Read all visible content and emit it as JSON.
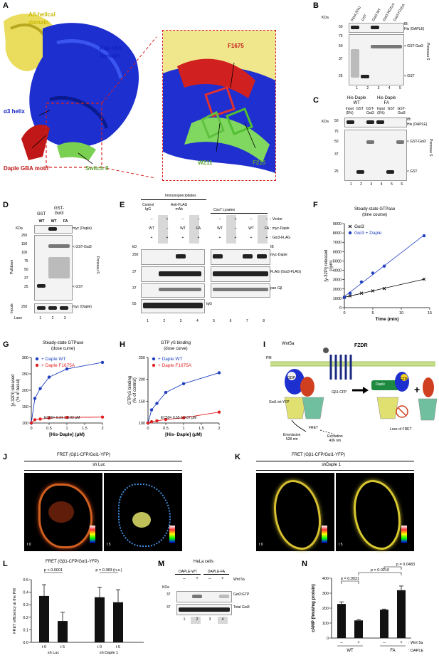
{
  "panels": {
    "A": {
      "letter": "A",
      "labels": {
        "all_helical": "All-helical\ndomain",
        "ras_like": "Ras-like\ndomain",
        "a3_helix": "α3 helix",
        "gba": "Daple GBA motif",
        "switch2": "Switch II",
        "f1675": "F1675",
        "w211": "W211",
        "f215": "F215"
      }
    },
    "B": {
      "letter": "B",
      "kda": "KDa",
      "lanes_top": [
        "Input (5%)",
        "GST",
        "Gαi3 WT",
        "Gαi3 W211A",
        "Gαi3 F215A"
      ],
      "ib": "IB:\nHis (DAPLE)",
      "ponceau": "Ponceau S",
      "gst_gai3": "< GST-Gαi3",
      "gst": "< GST",
      "lane_nums": [
        "1",
        "2",
        "3",
        "4",
        "5"
      ],
      "mw": [
        "50",
        "75",
        "50",
        "37",
        "25"
      ]
    },
    "C": {
      "letter": "C",
      "kda": "KDa",
      "group1": "His-Daple\nWT",
      "group2": "His-Daple\nFA",
      "lanes": [
        "Input\n(5%)",
        "GST",
        "GST-\nGαi3",
        "Input\n(5%)",
        "GST",
        "GST-\nGαi3"
      ],
      "ib": "IB:\nHis (DAPLE)",
      "ponceau": "Ponceau S",
      "gst_gai3": "< GST-Gαi3",
      "gst": "< GST",
      "lane_nums": [
        "1",
        "2",
        "3",
        "4",
        "5",
        "6"
      ],
      "mw": [
        "50",
        "75",
        "50",
        "37",
        "25"
      ]
    },
    "D": {
      "letter": "D",
      "header_gst": "GST",
      "header_gstgai3": "GST-\nGαi3",
      "lanes": [
        "WT",
        "WT",
        "FA"
      ],
      "kda": "KDa",
      "myc": "myc (Daple)",
      "gst_gai3": "< GST-Gαi3",
      "gst": "< GST",
      "ponceau": "Ponceau S",
      "pulldown": "Pulldown",
      "inputs": "Inputs",
      "myc2": "myc (Daple)",
      "lane_label": "Lane",
      "lane_nums": [
        "1",
        "2",
        "3"
      ],
      "mw": [
        "250",
        "250",
        "150",
        "100",
        "75",
        "50",
        "37",
        "25",
        "250"
      ]
    },
    "E": {
      "letter": "E",
      "immuno": "Immunoprecipitates",
      "control_igg": "Control\nIgG",
      "anti_flag": "Anti-FLAG\nmAb",
      "lysates": "Cos7 Lysates",
      "row_labels": [
        ": Vector",
        ": myc-Daple",
        ": Gαi3-FLAG"
      ],
      "ib": "IB",
      "myc_daple": "myc-Daple",
      "flag": "FLAG (Gαi3-FLAG)",
      "pan_gb": "pan Gβ",
      "igg": "IgG",
      "kd": "kD",
      "lane_nums": [
        "1",
        "2",
        "3",
        "4",
        "5",
        "6",
        "7",
        "8"
      ],
      "mw": [
        "250",
        "37",
        "37",
        "55"
      ],
      "row_vector": [
        "–",
        "+",
        "–",
        "–",
        "–",
        "+",
        "–",
        "–"
      ],
      "row_daple": [
        "WT",
        "–",
        "WT",
        "FA",
        "WT",
        "–",
        "WT",
        "FA"
      ],
      "row_flag": [
        "+",
        "+",
        "+",
        "+",
        "+",
        "+",
        "+",
        "+"
      ]
    },
    "F": {
      "letter": "F",
      "title": "Steady-state GTPase\n(time course)"
    },
    "G": {
      "letter": "G",
      "title": "Steady-state GTPase\n(dose curve)",
      "ec50": "EC50= 0.31 ± 0.03 μM"
    },
    "H": {
      "letter": "H",
      "title": "GTP γS binding\n(dose curve)",
      "ec50": "EC50= 0.55 ± 0.07 μM"
    },
    "I": {
      "letter": "I",
      "wnt": "Wnt5a",
      "fzdr": "FZDR",
      "pm": "PM",
      "gdp": "GDP",
      "gtp": "GTP",
      "daple": "Daple",
      "gbg_cfp": "Gβ1-CFP",
      "gai_yfp": "Gαi1-int YFP",
      "fret": "FRET",
      "emission": "Emmission\n528 nm",
      "excitation": "Excitation\n436 nm",
      "loss": "Loss of FRET"
    },
    "J": {
      "letter": "J",
      "title": "FRET (Gβ1-CFP/Gαi1-YFP)",
      "sub": "sh Luc",
      "t0": "t 0",
      "t5": "t 5"
    },
    "K": {
      "letter": "K",
      "title": "FRET (Gβ1-CFP/Gαi1-YFP)",
      "sub": "shDaple 1",
      "t0": "t 0",
      "t5": "t 5"
    },
    "L": {
      "letter": "L",
      "title": "FRET (Gβ1-CFP/Gαi1-YFP)",
      "p1": "p < 0.0001",
      "p2": "p = 0.383 (n.s.)",
      "ylabel": "FRET efficiency at the PM",
      "groups": [
        "sh Luc",
        "sh Daple 1"
      ]
    },
    "M": {
      "letter": "M",
      "hela": "HeLa cells",
      "daple_wt": "DAPLE-WT",
      "daple_fa": "DAPLE-FA",
      "wnt": "Wnt 5a",
      "wnt_signs": [
        "–",
        "+",
        "–",
        "+"
      ],
      "kda": "KDa",
      "gtp_label": "Gαi3:GTP",
      "total_label": "Total Gαi3",
      "lane_nums": [
        "1",
        "2",
        "3",
        "4"
      ],
      "mw": [
        "37",
        "37"
      ]
    },
    "N": {
      "letter": "N",
      "ylabel": "cAMP (fmol/mg protein)",
      "p1": "p = 0.0021",
      "p2": "p = 0.0210",
      "p3": "p = 0.0483",
      "wnt": ": Wnt 5a",
      "daple": ": DAPLE",
      "groups": [
        "WT",
        "FA"
      ],
      "signs": [
        "–",
        "+",
        "–",
        "+"
      ]
    }
  },
  "chart_data": [
    {
      "panel": "F",
      "type": "scatter",
      "title": "Steady-state GTPase\n(time course)",
      "xlabel": "Time (min)",
      "ylabel": "[γ-32Pi] released\n(cpm)",
      "xlim": [
        0,
        15
      ],
      "ylim": [
        0,
        9000
      ],
      "xticks": [
        0,
        5,
        10,
        15
      ],
      "yticks": [
        0,
        1000,
        2000,
        3000,
        4000,
        5000,
        6000,
        7000,
        8000,
        9000
      ],
      "series": [
        {
          "name": "Gαi3",
          "color": "#000000",
          "marker": "x",
          "x": [
            0,
            1,
            3,
            5,
            7,
            14
          ],
          "y": [
            1100,
            1250,
            1550,
            1800,
            2050,
            3050
          ]
        },
        {
          "name": "Gαi3 + Daple",
          "color": "#1f3fbf",
          "marker": "o",
          "x": [
            0,
            1,
            3,
            5,
            7,
            14
          ],
          "y": [
            1100,
            1550,
            2750,
            3700,
            4450,
            7700
          ]
        }
      ]
    },
    {
      "panel": "G",
      "type": "line",
      "title": "Steady-state GTPase\n(dose curve)",
      "xlabel": "[His-Daple]  (μM)",
      "ylabel": "[γ-32Pi] released\n(% of basal)",
      "xlim": [
        0,
        2
      ],
      "ylim": [
        100,
        300
      ],
      "xticks": [
        0,
        0.5,
        1,
        1.5,
        2
      ],
      "yticks": [
        100,
        150,
        200,
        250,
        300
      ],
      "series": [
        {
          "name": "+ Daple WT",
          "color": "#1f3fbf",
          "x": [
            0,
            0.1,
            0.25,
            0.5,
            1.0,
            2.0
          ],
          "y": [
            100,
            175,
            205,
            240,
            265,
            285
          ]
        },
        {
          "name": "+ Daple F1675A",
          "color": "#e02020",
          "x": [
            0,
            0.1,
            0.25,
            0.5,
            1.0,
            2.0
          ],
          "y": [
            100,
            110,
            112,
            115,
            117,
            118
          ]
        }
      ]
    },
    {
      "panel": "H",
      "type": "line",
      "title": "GTP γS binding\n(dose curve)",
      "xlabel": "[His- Daple]  (μM)",
      "ylabel": "GTPγS binding\n(% of control)",
      "xlim": [
        0,
        2
      ],
      "ylim": [
        100,
        250
      ],
      "xticks": [
        0,
        0.5,
        1,
        1.5,
        2
      ],
      "yticks": [
        100,
        150,
        200,
        250
      ],
      "series": [
        {
          "name": "+ Daple WT",
          "color": "#1f3fbf",
          "x": [
            0,
            0.1,
            0.25,
            0.5,
            1.0,
            2.0
          ],
          "y": [
            100,
            130,
            145,
            170,
            190,
            215
          ]
        },
        {
          "name": "+ Daple F1675A",
          "color": "#e02020",
          "x": [
            0,
            0.1,
            0.25,
            0.5,
            1.0,
            2.0
          ],
          "y": [
            100,
            103,
            105,
            108,
            112,
            125
          ]
        }
      ]
    },
    {
      "panel": "L",
      "type": "bar",
      "title": "FRET (Gβ1-CFP/Gαi1-YFP)",
      "categories": [
        "t 0",
        "t 5",
        "t 0",
        "t 5"
      ],
      "groups": [
        "sh Luc",
        "sh Luc",
        "sh Daple 1",
        "sh Daple 1"
      ],
      "values": [
        0.37,
        0.17,
        0.36,
        0.32
      ],
      "errors": [
        0.09,
        0.07,
        0.08,
        0.1
      ],
      "ylabel": "FRET efficiency at the PM",
      "ylim": [
        0,
        0.5
      ],
      "yticks": [
        0,
        0.1,
        0.2,
        0.3,
        0.4,
        0.5
      ]
    },
    {
      "panel": "N",
      "type": "bar",
      "categories": [
        "–",
        "+",
        "–",
        "+"
      ],
      "groups": [
        "WT",
        "WT",
        "FA",
        "FA"
      ],
      "values": [
        228,
        118,
        190,
        320
      ],
      "errors": [
        14,
        6,
        4,
        28
      ],
      "ylabel": "cAMP (fmol/mg protein)",
      "ylim": [
        0,
        400
      ],
      "yticks": [
        0,
        100,
        200,
        300,
        400
      ]
    }
  ]
}
